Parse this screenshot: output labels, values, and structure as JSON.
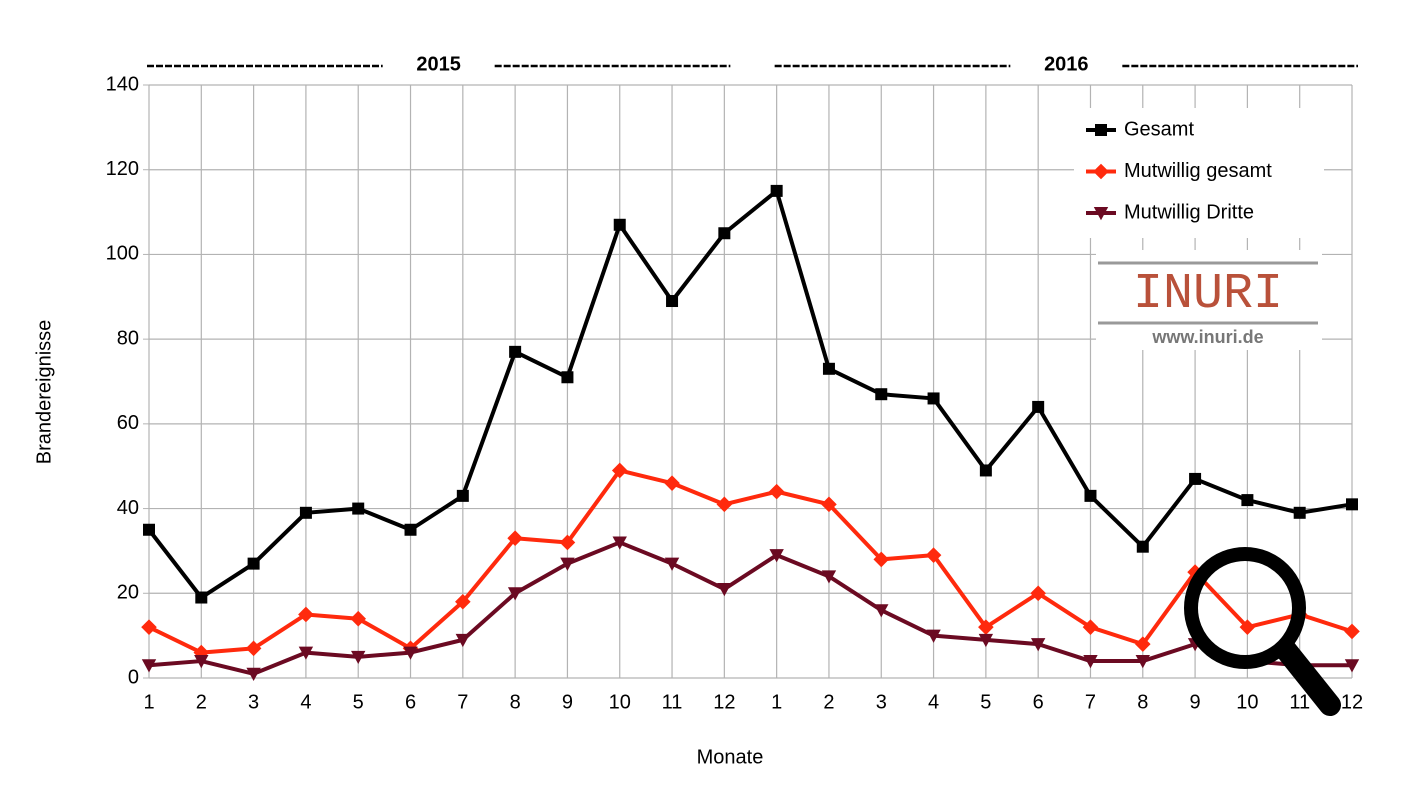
{
  "chart_data": {
    "type": "line",
    "year_labels": [
      "2015",
      "2016"
    ],
    "x_label": "Monate",
    "y_label": "Brandereignisse",
    "categories": [
      "1",
      "2",
      "3",
      "4",
      "5",
      "6",
      "7",
      "8",
      "9",
      "10",
      "11",
      "12",
      "1",
      "2",
      "3",
      "4",
      "5",
      "6",
      "7",
      "8",
      "9",
      "10",
      "11",
      "12"
    ],
    "series": [
      {
        "name": "Gesamt",
        "color": "#000000",
        "marker": "square",
        "values": [
          35,
          19,
          27,
          39,
          40,
          35,
          43,
          77,
          71,
          107,
          89,
          105,
          115,
          73,
          67,
          66,
          49,
          64,
          43,
          31,
          47,
          42,
          39,
          41
        ]
      },
      {
        "name": "Mutwillig gesamt",
        "color": "#ff2a0d",
        "marker": "diamond",
        "values": [
          12,
          6,
          7,
          15,
          14,
          7,
          18,
          33,
          32,
          49,
          46,
          41,
          44,
          41,
          28,
          29,
          12,
          20,
          12,
          8,
          25,
          12,
          15,
          11
        ]
      },
      {
        "name": "Mutwillig Dritte",
        "color": "#6b0a22",
        "marker": "triangle-down",
        "values": [
          3,
          4,
          1,
          6,
          5,
          6,
          9,
          20,
          27,
          32,
          27,
          21,
          29,
          24,
          16,
          10,
          9,
          8,
          4,
          4,
          8,
          4,
          3,
          3
        ]
      }
    ],
    "ylim": [
      0,
      140
    ],
    "yticks": [
      0,
      20,
      40,
      60,
      80,
      100,
      120,
      140
    ],
    "grid": true,
    "legend": "top-right",
    "logo": {
      "title": "INURI",
      "url": "www.inuri.de"
    }
  }
}
